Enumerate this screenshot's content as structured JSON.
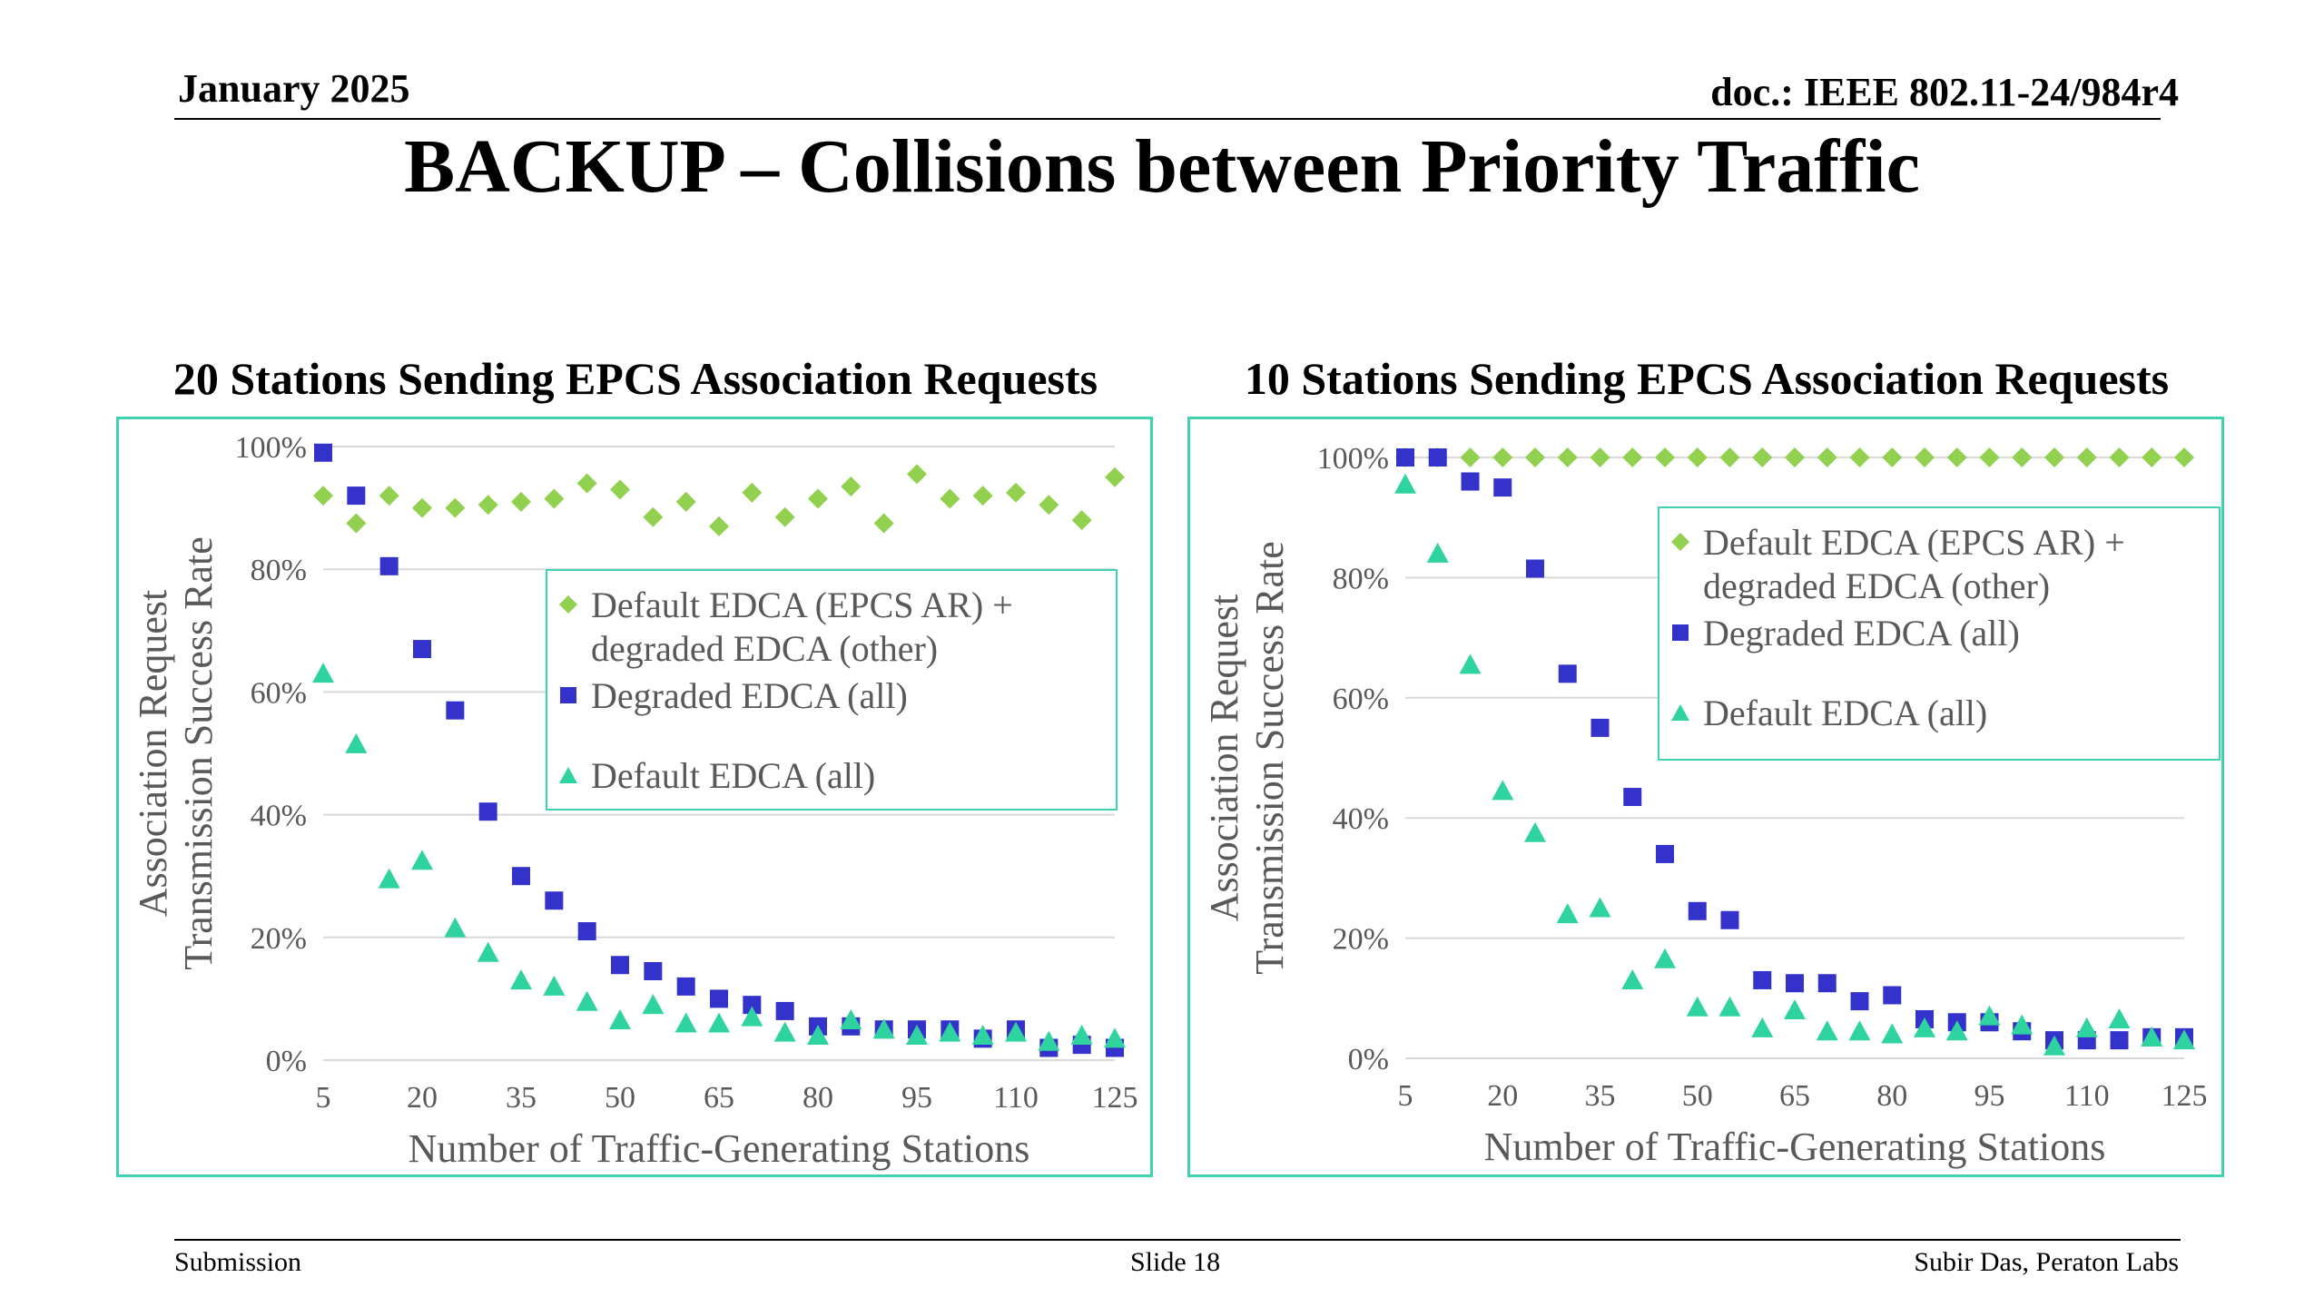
{
  "header": {
    "date": "January 2025",
    "doc": "doc.: IEEE 802.11-24/984r4"
  },
  "title": "BACKUP – Collisions between Priority Traffic",
  "footer": {
    "left": "Submission",
    "center": "Slide 18",
    "right": "Subir Das, Peraton Labs"
  },
  "colors": {
    "series_ar": "#92d050",
    "series_degraded": "#3333cc",
    "series_default": "#2ed3a0",
    "frame": "#3fd1b0",
    "text": "#595959",
    "grid": "#d9d9d9"
  },
  "chart_data": [
    {
      "type": "scatter",
      "title": "20 Stations Sending EPCS Association Requests",
      "xlabel": "Number of Traffic-Generating Stations",
      "ylabel": [
        "Association Request",
        "Transmission Success Rate"
      ],
      "xlim": [
        5,
        125
      ],
      "ylim": [
        0,
        100
      ],
      "x_ticks": [
        5,
        20,
        35,
        50,
        65,
        80,
        95,
        110,
        125
      ],
      "y_ticks": [
        "0%",
        "20%",
        "40%",
        "60%",
        "80%",
        "100%"
      ],
      "x": [
        5,
        10,
        15,
        20,
        25,
        30,
        35,
        40,
        45,
        50,
        55,
        60,
        65,
        70,
        75,
        80,
        85,
        90,
        95,
        100,
        105,
        110,
        115,
        120,
        125
      ],
      "legend_position": "center-right",
      "series": [
        {
          "name": "Default EDCA (EPCS AR) + degraded EDCA (other)",
          "marker": "diamond",
          "values": [
            92,
            87.5,
            92,
            90,
            90,
            90.5,
            91,
            91.5,
            94,
            93,
            88.5,
            91,
            87,
            92.5,
            88.5,
            91.5,
            93.5,
            87.5,
            95.5,
            91.5,
            92,
            92.5,
            90.5,
            88,
            95
          ]
        },
        {
          "name": "Degraded EDCA (all)",
          "marker": "square",
          "values": [
            99,
            92,
            80.5,
            67,
            57,
            40.5,
            30,
            26,
            21,
            15.5,
            14.5,
            12,
            10,
            9,
            8,
            5.5,
            5.5,
            5,
            5,
            5,
            3.5,
            5,
            2,
            2.5,
            2
          ]
        },
        {
          "name": "Default EDCA (all)",
          "marker": "triangle",
          "values": [
            63,
            51.5,
            29.5,
            32.5,
            21.5,
            17.5,
            13,
            12,
            9.5,
            6.5,
            9,
            6,
            6,
            7,
            4.5,
            4,
            6.5,
            5,
            4,
            4.5,
            4,
            4.5,
            3,
            4,
            3.5
          ]
        }
      ]
    },
    {
      "type": "scatter",
      "title": "10 Stations Sending EPCS Association Requests",
      "xlabel": "Number of Traffic-Generating Stations",
      "ylabel": [
        "Association Request",
        "Transmission Success Rate"
      ],
      "xlim": [
        5,
        125
      ],
      "ylim": [
        0,
        100
      ],
      "x_ticks": [
        5,
        20,
        35,
        50,
        65,
        80,
        95,
        110,
        125
      ],
      "y_ticks": [
        "0%",
        "20%",
        "40%",
        "60%",
        "80%",
        "100%"
      ],
      "x": [
        5,
        10,
        15,
        20,
        25,
        30,
        35,
        40,
        45,
        50,
        55,
        60,
        65,
        70,
        75,
        80,
        85,
        90,
        95,
        100,
        105,
        110,
        115,
        120,
        125
      ],
      "legend_position": "top-right",
      "series": [
        {
          "name": "Default EDCA (EPCS AR) + degraded EDCA (other)",
          "marker": "diamond",
          "values": [
            100,
            100,
            100,
            100,
            100,
            100,
            100,
            100,
            100,
            100,
            100,
            100,
            100,
            100,
            100,
            100,
            100,
            100,
            100,
            100,
            100,
            100,
            100,
            100,
            100
          ]
        },
        {
          "name": "Degraded EDCA (all)",
          "marker": "square",
          "values": [
            100,
            100,
            96,
            95,
            81.5,
            64,
            55,
            43.5,
            34,
            24.5,
            23,
            13,
            12.5,
            12.5,
            9.5,
            10.5,
            6.5,
            6,
            6,
            4.5,
            3,
            3,
            3,
            3.5,
            3.5
          ]
        },
        {
          "name": "Default EDCA (all)",
          "marker": "triangle",
          "values": [
            95.5,
            84,
            65.5,
            44.5,
            37.5,
            24,
            25,
            13,
            16.5,
            8.5,
            8.5,
            5,
            8,
            4.5,
            4.5,
            4,
            5,
            4.5,
            7,
            5.5,
            2,
            5,
            6.5,
            3.5,
            3
          ]
        }
      ]
    }
  ]
}
